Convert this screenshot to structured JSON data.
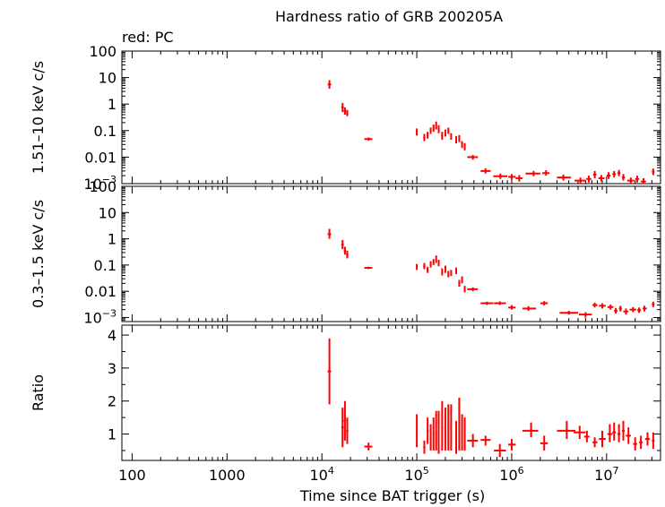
{
  "chart_data": {
    "type": "scatter",
    "title": "Hardness ratio of GRB 200205A",
    "legend": "red: PC",
    "series_color": "#ff0000",
    "xlabel": "Time since BAT trigger (s)",
    "xscale": "log",
    "xlim": [
      78,
      37000000
    ],
    "xticks": [
      {
        "value": 100,
        "label": "100"
      },
      {
        "value": 1000,
        "label": "1000"
      },
      {
        "value": 10000,
        "label": "10",
        "exp": "4"
      },
      {
        "value": 100000,
        "label": "10",
        "exp": "5"
      },
      {
        "value": 1000000,
        "label": "10",
        "exp": "6"
      },
      {
        "value": 10000000,
        "label": "10",
        "exp": "7"
      }
    ],
    "panels": [
      {
        "ylabel": "1.51–10 keV c/s",
        "yscale": "log",
        "ylim": [
          0.001,
          100
        ],
        "yticks": [
          {
            "value": 100,
            "label": "100"
          },
          {
            "value": 10,
            "label": "10"
          },
          {
            "value": 1,
            "label": "1"
          },
          {
            "value": 0.1,
            "label": "0.1"
          },
          {
            "value": 0.01,
            "label": "0.01"
          },
          {
            "value": 0.001,
            "label": "10",
            "exp": "−3"
          }
        ],
        "points": [
          [
            12000,
            11500,
            12500,
            5.5,
            3.8,
            8.0
          ],
          [
            16500,
            16000,
            17000,
            0.75,
            0.5,
            1.1
          ],
          [
            17500,
            17000,
            18000,
            0.55,
            0.4,
            0.75
          ],
          [
            18500,
            18000,
            19000,
            0.45,
            0.35,
            0.6
          ],
          [
            31000,
            28000,
            34000,
            0.048,
            0.042,
            0.055
          ],
          [
            100000,
            98000,
            102000,
            0.09,
            0.065,
            0.12
          ],
          [
            120000,
            117000,
            123000,
            0.055,
            0.04,
            0.075
          ],
          [
            130000,
            127000,
            133000,
            0.07,
            0.05,
            0.09
          ],
          [
            140000,
            137000,
            143000,
            0.1,
            0.075,
            0.13
          ],
          [
            150000,
            147000,
            153000,
            0.13,
            0.09,
            0.17
          ],
          [
            160000,
            157000,
            163000,
            0.16,
            0.11,
            0.22
          ],
          [
            170000,
            167000,
            173000,
            0.12,
            0.08,
            0.16
          ],
          [
            185000,
            181000,
            189000,
            0.065,
            0.045,
            0.09
          ],
          [
            200000,
            196000,
            204000,
            0.08,
            0.06,
            0.11
          ],
          [
            215000,
            211000,
            219000,
            0.1,
            0.075,
            0.13
          ],
          [
            230000,
            226000,
            234000,
            0.06,
            0.045,
            0.08
          ],
          [
            260000,
            255000,
            265000,
            0.045,
            0.033,
            0.062
          ],
          [
            280000,
            275000,
            285000,
            0.05,
            0.037,
            0.068
          ],
          [
            300000,
            295000,
            305000,
            0.03,
            0.022,
            0.04
          ],
          [
            320000,
            315000,
            325000,
            0.025,
            0.018,
            0.034
          ],
          [
            390000,
            340000,
            440000,
            0.01,
            0.008,
            0.012
          ],
          [
            530000,
            470000,
            600000,
            0.003,
            0.0024,
            0.0038
          ],
          [
            760000,
            640000,
            900000,
            0.0019,
            0.0015,
            0.0024
          ],
          [
            1000000,
            920000,
            1100000,
            0.0018,
            0.0014,
            0.0023
          ],
          [
            1200000,
            1100000,
            1300000,
            0.0016,
            0.0012,
            0.0021
          ],
          [
            1700000,
            1400000,
            2000000,
            0.0024,
            0.0019,
            0.003
          ],
          [
            2300000,
            2100000,
            2500000,
            0.0025,
            0.002,
            0.0032
          ],
          [
            3500000,
            3000000,
            4200000,
            0.0017,
            0.0013,
            0.0022
          ],
          [
            5300000,
            4600000,
            6000000,
            0.0013,
            0.001,
            0.0017
          ],
          [
            6500000,
            6100000,
            6900000,
            0.0015,
            0.0011,
            0.002
          ],
          [
            7500000,
            7200000,
            7800000,
            0.0022,
            0.0016,
            0.003
          ],
          [
            8800000,
            8200000,
            9500000,
            0.0016,
            0.0012,
            0.0021
          ],
          [
            10500000,
            10000000,
            11000000,
            0.002,
            0.0015,
            0.0027
          ],
          [
            12000000,
            11500000,
            12500000,
            0.0023,
            0.0017,
            0.003
          ],
          [
            13500000,
            13000000,
            14000000,
            0.0025,
            0.0019,
            0.0033
          ],
          [
            15000000,
            14500000,
            15600000,
            0.0017,
            0.0013,
            0.0023
          ],
          [
            18000000,
            16500000,
            19500000,
            0.0013,
            0.001,
            0.0017
          ],
          [
            21000000,
            20000000,
            22000000,
            0.0015,
            0.0011,
            0.002
          ],
          [
            24500000,
            23000000,
            26000000,
            0.0012,
            0.0009,
            0.0016
          ],
          [
            31000000,
            30000000,
            32000000,
            0.0028,
            0.0021,
            0.0037
          ]
        ]
      },
      {
        "ylabel": "0.3–1.5 keV c/s",
        "yscale": "log",
        "ylim": [
          0.0007,
          100
        ],
        "yticks": [
          {
            "value": 100,
            "label": "100"
          },
          {
            "value": 10,
            "label": "10"
          },
          {
            "value": 1,
            "label": "1"
          },
          {
            "value": 0.1,
            "label": "0.1"
          },
          {
            "value": 0.01,
            "label": "0.01"
          },
          {
            "value": 0.001,
            "label": "10",
            "exp": "−3"
          }
        ],
        "points": [
          [
            12000,
            11500,
            12500,
            1.5,
            1.0,
            2.4
          ],
          [
            16500,
            16000,
            17000,
            0.6,
            0.4,
            0.9
          ],
          [
            17500,
            17000,
            18000,
            0.35,
            0.25,
            0.5
          ],
          [
            18500,
            18000,
            19000,
            0.25,
            0.18,
            0.35
          ],
          [
            31000,
            28000,
            34000,
            0.078,
            0.07,
            0.086
          ],
          [
            100000,
            98000,
            102000,
            0.085,
            0.065,
            0.11
          ],
          [
            120000,
            117000,
            123000,
            0.09,
            0.07,
            0.12
          ],
          [
            130000,
            127000,
            133000,
            0.065,
            0.05,
            0.085
          ],
          [
            140000,
            137000,
            143000,
            0.11,
            0.08,
            0.14
          ],
          [
            150000,
            147000,
            153000,
            0.13,
            0.1,
            0.17
          ],
          [
            160000,
            157000,
            163000,
            0.17,
            0.12,
            0.23
          ],
          [
            170000,
            167000,
            173000,
            0.12,
            0.09,
            0.16
          ],
          [
            185000,
            181000,
            189000,
            0.055,
            0.04,
            0.075
          ],
          [
            200000,
            196000,
            204000,
            0.07,
            0.05,
            0.095
          ],
          [
            215000,
            211000,
            219000,
            0.045,
            0.034,
            0.06
          ],
          [
            230000,
            226000,
            234000,
            0.05,
            0.038,
            0.065
          ],
          [
            260000,
            255000,
            265000,
            0.06,
            0.045,
            0.08
          ],
          [
            280000,
            275000,
            285000,
            0.02,
            0.015,
            0.027
          ],
          [
            300000,
            295000,
            305000,
            0.028,
            0.02,
            0.037
          ],
          [
            320000,
            315000,
            325000,
            0.012,
            0.009,
            0.016
          ],
          [
            390000,
            340000,
            440000,
            0.012,
            0.01,
            0.014
          ],
          [
            550000,
            470000,
            640000,
            0.0035,
            0.003,
            0.004
          ],
          [
            750000,
            650000,
            870000,
            0.0035,
            0.003,
            0.0041
          ],
          [
            1000000,
            920000,
            1100000,
            0.0024,
            0.002,
            0.003
          ],
          [
            1500000,
            1300000,
            1800000,
            0.0022,
            0.0018,
            0.0027
          ],
          [
            2200000,
            2000000,
            2400000,
            0.0035,
            0.0029,
            0.0042
          ],
          [
            4000000,
            3200000,
            5000000,
            0.0015,
            0.0013,
            0.0018
          ],
          [
            6000000,
            5100000,
            7000000,
            0.0013,
            0.001,
            0.0016
          ],
          [
            7500000,
            7100000,
            8000000,
            0.003,
            0.0024,
            0.0037
          ],
          [
            9000000,
            8300000,
            9800000,
            0.0028,
            0.0022,
            0.0035
          ],
          [
            11000000,
            10200000,
            11800000,
            0.0025,
            0.002,
            0.0031
          ],
          [
            12500000,
            12000000,
            13000000,
            0.0018,
            0.0014,
            0.0023
          ],
          [
            14000000,
            13500000,
            14500000,
            0.0022,
            0.0017,
            0.0028
          ],
          [
            16000000,
            15000000,
            17000000,
            0.0017,
            0.0013,
            0.0022
          ],
          [
            19000000,
            17500000,
            20500000,
            0.002,
            0.0016,
            0.0025
          ],
          [
            22000000,
            21000000,
            23000000,
            0.0019,
            0.0015,
            0.0024
          ],
          [
            25000000,
            24000000,
            26500000,
            0.0022,
            0.0017,
            0.0028
          ],
          [
            31000000,
            30000000,
            32000000,
            0.0032,
            0.0025,
            0.004
          ]
        ]
      },
      {
        "ylabel": "Ratio",
        "yscale": "linear",
        "ylim": [
          0.2,
          4.3
        ],
        "yticks": [
          {
            "value": 1,
            "label": "1"
          },
          {
            "value": 2,
            "label": "2"
          },
          {
            "value": 3,
            "label": "3"
          },
          {
            "value": 4,
            "label": "4"
          }
        ],
        "points": [
          [
            12000,
            11500,
            12500,
            2.9,
            1.9,
            3.9
          ],
          [
            16500,
            16000,
            17000,
            1.2,
            0.6,
            1.8
          ],
          [
            17500,
            17000,
            18000,
            1.4,
            0.8,
            2.0
          ],
          [
            18500,
            18000,
            19000,
            1.1,
            0.7,
            1.5
          ],
          [
            31000,
            28000,
            34000,
            0.62,
            0.5,
            0.74
          ],
          [
            100000,
            98000,
            102000,
            1.1,
            0.6,
            1.6
          ],
          [
            120000,
            117000,
            123000,
            0.6,
            0.4,
            0.8
          ],
          [
            130000,
            127000,
            133000,
            1.1,
            0.7,
            1.5
          ],
          [
            140000,
            137000,
            143000,
            0.9,
            0.5,
            1.3
          ],
          [
            150000,
            147000,
            153000,
            1.0,
            0.5,
            1.5
          ],
          [
            160000,
            157000,
            163000,
            1.0,
            0.5,
            1.7
          ],
          [
            170000,
            167000,
            173000,
            1.0,
            0.4,
            1.7
          ],
          [
            185000,
            181000,
            189000,
            1.2,
            0.5,
            2.0
          ],
          [
            200000,
            196000,
            204000,
            1.1,
            0.5,
            1.8
          ],
          [
            215000,
            211000,
            219000,
            1.2,
            0.5,
            1.9
          ],
          [
            230000,
            226000,
            234000,
            1.2,
            0.5,
            1.9
          ],
          [
            260000,
            255000,
            265000,
            0.8,
            0.4,
            1.4
          ],
          [
            280000,
            275000,
            285000,
            1.4,
            0.5,
            2.1
          ],
          [
            300000,
            295000,
            305000,
            1.0,
            0.5,
            1.6
          ],
          [
            320000,
            315000,
            325000,
            0.9,
            0.5,
            1.5
          ],
          [
            390000,
            340000,
            440000,
            0.8,
            0.6,
            1.0
          ],
          [
            530000,
            470000,
            600000,
            0.82,
            0.65,
            0.95
          ],
          [
            750000,
            650000,
            870000,
            0.5,
            0.3,
            0.7
          ],
          [
            1000000,
            920000,
            1100000,
            0.68,
            0.5,
            0.85
          ],
          [
            1600000,
            1300000,
            1900000,
            1.1,
            0.9,
            1.35
          ],
          [
            2200000,
            2000000,
            2400000,
            0.72,
            0.5,
            0.95
          ],
          [
            3800000,
            3000000,
            4700000,
            1.1,
            0.85,
            1.4
          ],
          [
            5200000,
            4500000,
            6000000,
            1.05,
            0.85,
            1.25
          ],
          [
            6200000,
            5800000,
            6600000,
            0.92,
            0.75,
            1.1
          ],
          [
            7500000,
            7100000,
            8000000,
            0.75,
            0.6,
            0.9
          ],
          [
            9000000,
            8300000,
            9800000,
            0.85,
            0.6,
            1.1
          ],
          [
            10800000,
            10200000,
            11500000,
            1.0,
            0.75,
            1.3
          ],
          [
            12000000,
            11500000,
            12500000,
            1.05,
            0.8,
            1.35
          ],
          [
            13500000,
            13000000,
            14000000,
            1.0,
            0.75,
            1.3
          ],
          [
            15000000,
            14500000,
            15500000,
            1.1,
            0.8,
            1.4
          ],
          [
            17000000,
            16000000,
            18000000,
            0.95,
            0.7,
            1.2
          ],
          [
            20000000,
            19000000,
            21000000,
            0.7,
            0.5,
            0.9
          ],
          [
            23000000,
            22000000,
            24000000,
            0.75,
            0.55,
            0.95
          ],
          [
            27000000,
            25500000,
            28500000,
            0.85,
            0.65,
            1.05
          ],
          [
            31000000,
            30000000,
            32000000,
            0.8,
            0.55,
            1.05
          ]
        ]
      }
    ]
  }
}
